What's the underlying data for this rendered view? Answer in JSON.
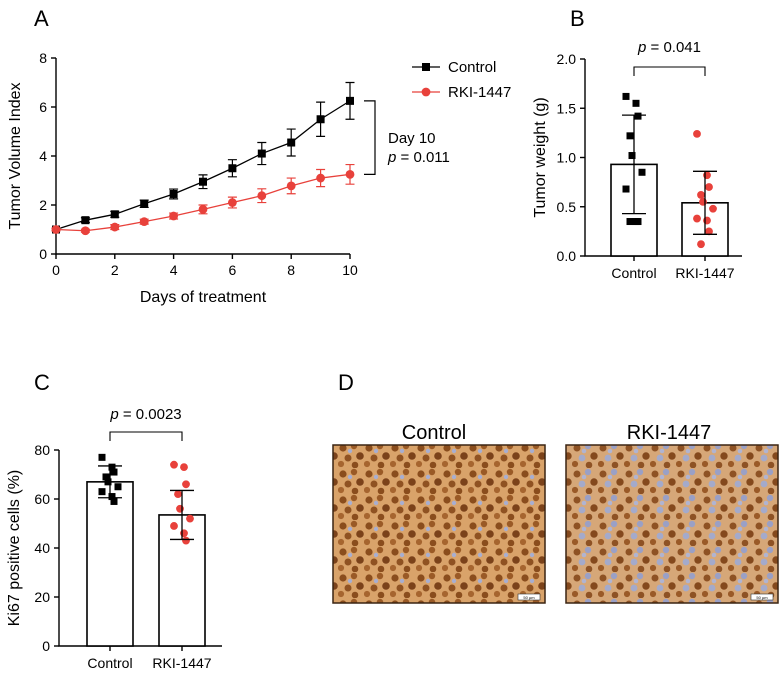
{
  "chart_data": [
    {
      "panel": "A",
      "type": "line",
      "xlabel": "Days of treatment",
      "ylabel": "Tumor Volume Index",
      "xlim": [
        0,
        10
      ],
      "ylim": [
        0,
        8
      ],
      "xticks": [
        "0",
        "2",
        "4",
        "6",
        "8",
        "10"
      ],
      "yticks": [
        "0",
        "2",
        "4",
        "6",
        "8"
      ],
      "legend_position": "top-right",
      "series": [
        {
          "name": "Control",
          "marker": "square",
          "color": "#000000",
          "x": [
            0,
            1,
            2,
            3,
            4,
            5,
            6,
            7,
            8,
            9,
            10
          ],
          "y": [
            1.0,
            1.38,
            1.62,
            2.05,
            2.45,
            2.95,
            3.5,
            4.1,
            4.55,
            5.5,
            6.25
          ],
          "error": [
            0.05,
            0.1,
            0.12,
            0.15,
            0.2,
            0.28,
            0.35,
            0.45,
            0.55,
            0.7,
            0.75
          ]
        },
        {
          "name": "RKI-1447",
          "marker": "circle",
          "color": "#e8413b",
          "x": [
            0,
            1,
            2,
            3,
            4,
            5,
            6,
            7,
            8,
            9,
            10
          ],
          "y": [
            1.0,
            0.95,
            1.1,
            1.32,
            1.55,
            1.82,
            2.1,
            2.38,
            2.78,
            3.1,
            3.25
          ],
          "error": [
            0.05,
            0.06,
            0.1,
            0.1,
            0.12,
            0.18,
            0.22,
            0.28,
            0.32,
            0.35,
            0.4
          ]
        }
      ],
      "annotation": {
        "line1": "Day 10",
        "p_label": "p",
        "p_value": " = 0.011"
      }
    },
    {
      "panel": "B",
      "type": "bar",
      "ylabel": "Tumor weight (g)",
      "ylim": [
        0,
        2.0
      ],
      "yticks": [
        "0.0",
        "0.5",
        "1.0",
        "1.5",
        "2.0"
      ],
      "categories": [
        "Control",
        "RKI-1447"
      ],
      "values": [
        0.93,
        0.54
      ],
      "sd": [
        0.5,
        0.32
      ],
      "colors": [
        "#000000",
        "#e8413b"
      ],
      "markers": [
        "square",
        "circle"
      ],
      "points": [
        [
          1.62,
          1.55,
          1.42,
          1.22,
          1.02,
          0.85,
          0.68,
          0.35,
          0.35,
          0.35
        ],
        [
          1.24,
          0.82,
          0.7,
          0.62,
          0.55,
          0.48,
          0.38,
          0.36,
          0.25,
          0.12
        ]
      ],
      "significance": {
        "p_label": "p",
        "p_value": " = 0.041"
      }
    },
    {
      "panel": "C",
      "type": "bar",
      "ylabel": "Ki67 positive cells (%)",
      "ylim": [
        0,
        80
      ],
      "yticks": [
        "0",
        "20",
        "40",
        "60",
        "80"
      ],
      "categories": [
        "Control",
        "RKI-1447"
      ],
      "values": [
        67,
        53.5
      ],
      "sd": [
        6.5,
        10
      ],
      "colors": [
        "#000000",
        "#e8413b"
      ],
      "markers": [
        "square",
        "circle"
      ],
      "points": [
        [
          77,
          73,
          71,
          69,
          67,
          65,
          63,
          61,
          59
        ],
        [
          74,
          73,
          66,
          62,
          56,
          52,
          49,
          46,
          43
        ]
      ],
      "significance": {
        "p_label": "p",
        "p_value": " = 0.0023"
      }
    }
  ],
  "panel_labels": {
    "a": "A",
    "b": "B",
    "c": "C",
    "d": "D"
  },
  "panel_d": {
    "titles": [
      "Control",
      "RKI-1447"
    ],
    "scale_bar_label": "50 µm"
  }
}
